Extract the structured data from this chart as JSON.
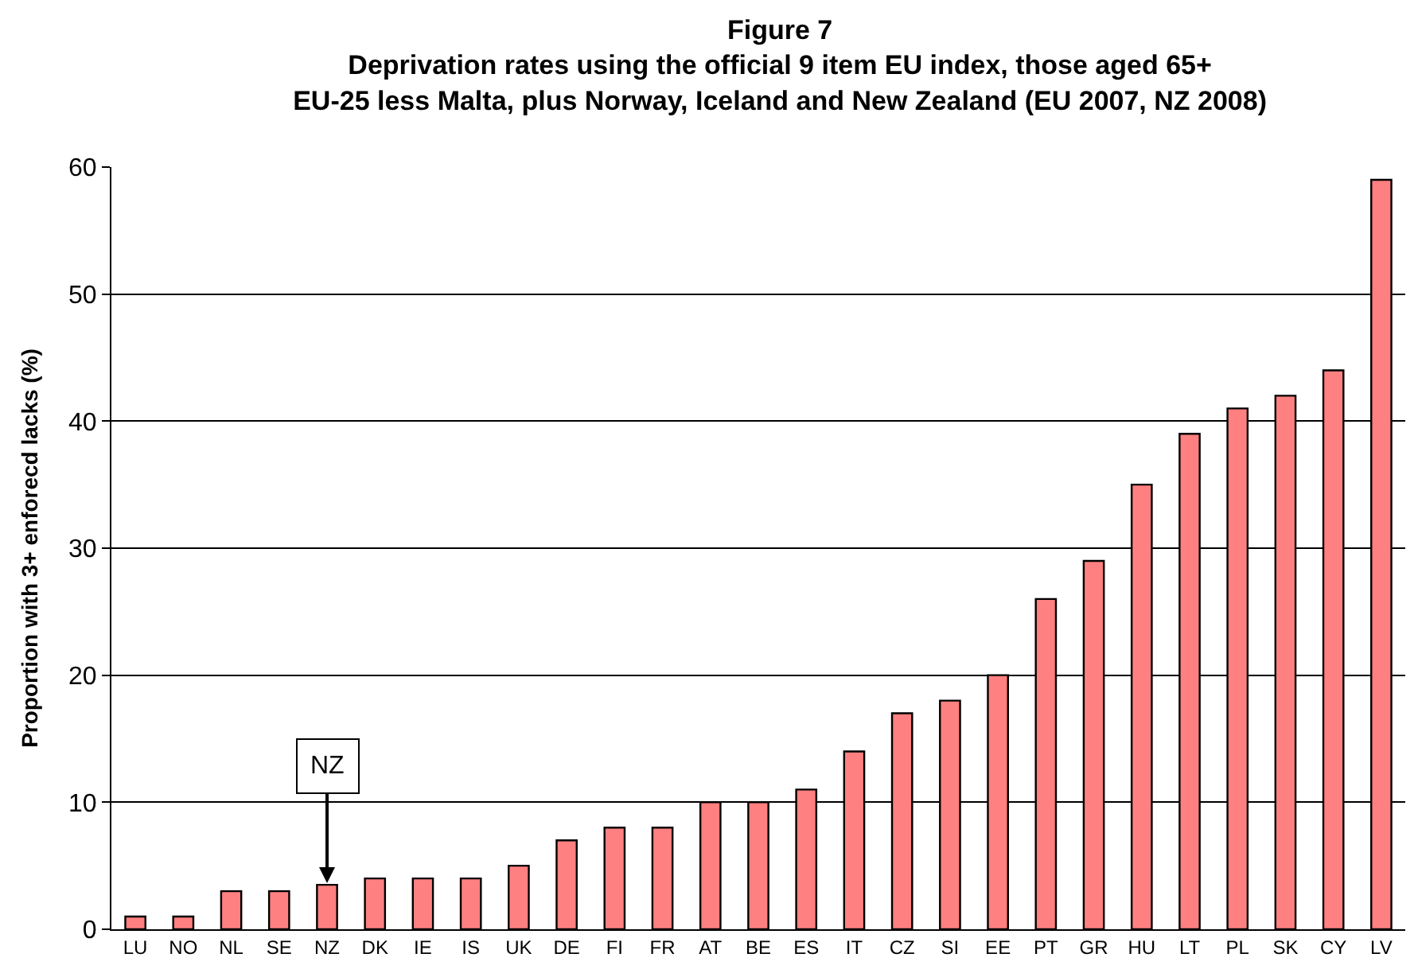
{
  "chart_data": {
    "type": "bar",
    "title": "Figure 7",
    "subtitle": "Deprivation rates using the official 9 item EU index, those aged 65+\nEU-25 less Malta, plus Norway, Iceland and New Zealand (EU 2007, NZ 2008)",
    "ylabel": "Proportion with 3+ enforecd lacks (%)",
    "categories": [
      "LU",
      "NO",
      "NL",
      "SE",
      "NZ",
      "DK",
      "IE",
      "IS",
      "UK",
      "DE",
      "FI",
      "FR",
      "AT",
      "BE",
      "ES",
      "IT",
      "CZ",
      "SI",
      "EE",
      "PT",
      "GR",
      "HU",
      "LT",
      "PL",
      "SK",
      "CY",
      "LV"
    ],
    "values": [
      1,
      1,
      3,
      3,
      3.5,
      4,
      4,
      4,
      5,
      7,
      8,
      8,
      10,
      10,
      11,
      14,
      17,
      18,
      20,
      26,
      29,
      35,
      39,
      41,
      42,
      44,
      59
    ],
    "color": "#ff8080",
    "ylim": [
      0,
      60
    ],
    "yticks": [
      0,
      10,
      20,
      30,
      40,
      50,
      60
    ],
    "grid": "y",
    "annotations": [
      {
        "text": "NZ",
        "x": "NZ",
        "y": 3.5
      }
    ]
  }
}
